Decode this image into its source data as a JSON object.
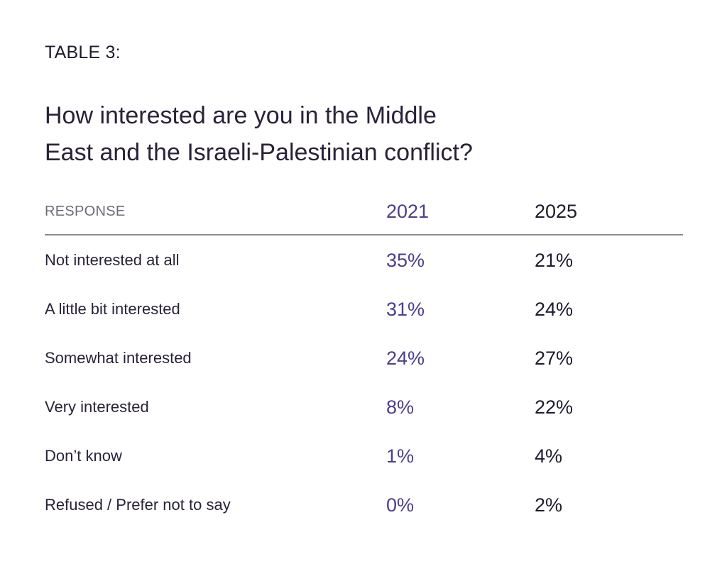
{
  "label": "TABLE 3:",
  "title_line1": "How interested are you in the Middle",
  "title_line2": "East and the Israeli-Palestinian conflict?",
  "colors": {
    "accent_2021": "#4a3f8c",
    "text_dark": "#1f1a2e",
    "header_gray": "#6e6a78",
    "rule": "#8c8894"
  },
  "chart_data": {
    "type": "table",
    "columns": [
      "RESPONSE",
      "2021",
      "2025"
    ],
    "rows": [
      {
        "response": "Not interested at all",
        "y2021": "35%",
        "y2025": "21%"
      },
      {
        "response": "A little bit interested",
        "y2021": "31%",
        "y2025": "24%"
      },
      {
        "response": "Somewhat interested",
        "y2021": "24%",
        "y2025": "27%"
      },
      {
        "response": "Very interested",
        "y2021": "8%",
        "y2025": "22%"
      },
      {
        "response": "Don’t know",
        "y2021": "1%",
        "y2025": "4%"
      },
      {
        "response": "Refused / Prefer not to say",
        "y2021": "0%",
        "y2025": "2%"
      }
    ]
  }
}
